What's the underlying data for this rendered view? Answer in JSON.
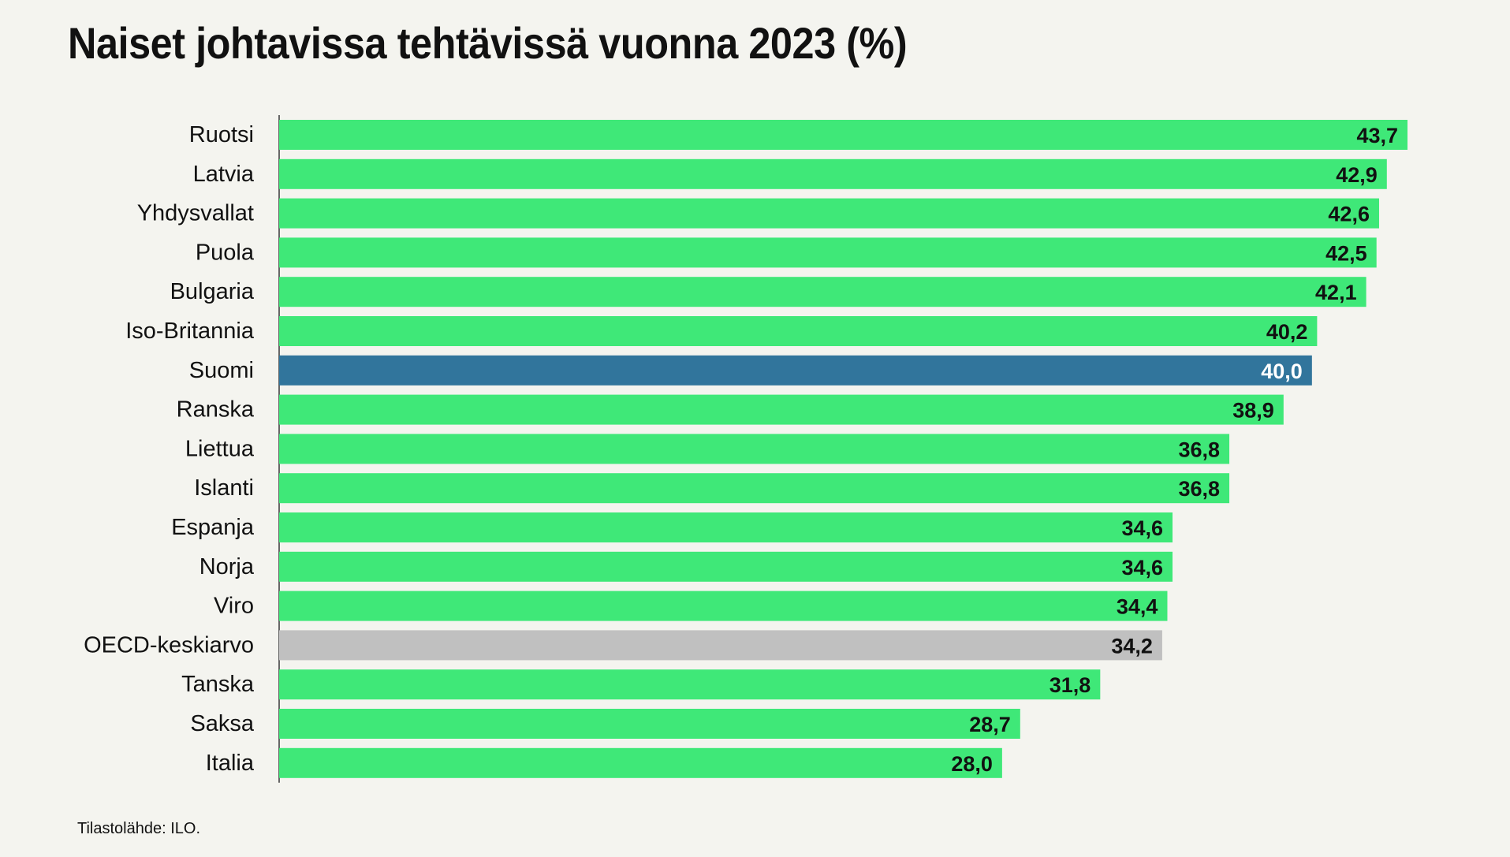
{
  "title": "Naiset johtavissa tehtävissä vuonna 2023 (%)",
  "source": "Tilastolähde: ILO.",
  "colors": {
    "default_bar": "#3fe878",
    "highlight_bar": "#31759c",
    "average_bar": "#c0c0c0",
    "label_dark": "#111111",
    "label_light": "#ffffff",
    "axis": "#666666",
    "background": "#f4f4ef"
  },
  "chart_data": {
    "type": "bar",
    "orientation": "horizontal",
    "title": "Naiset johtavissa tehtävissä vuonna 2023 (%)",
    "xlabel": "",
    "ylabel": "",
    "xlim": [
      0,
      43.7
    ],
    "grid": false,
    "legend": "none",
    "categories": [
      "Ruotsi",
      "Latvia",
      "Yhdysvallat",
      "Puola",
      "Bulgaria",
      "Iso-Britannia",
      "Suomi",
      "Ranska",
      "Liettua",
      "Islanti",
      "Espanja",
      "Norja",
      "Viro",
      "OECD-keskiarvo",
      "Tanska",
      "Saksa",
      "Italia"
    ],
    "values": [
      43.7,
      42.9,
      42.6,
      42.5,
      42.1,
      40.2,
      40.0,
      38.9,
      36.8,
      36.8,
      34.6,
      34.6,
      34.4,
      34.2,
      31.8,
      28.7,
      28.0
    ],
    "value_labels": [
      "43,7",
      "42,9",
      "42,6",
      "42,5",
      "42,1",
      "40,2",
      "40,0",
      "38,9",
      "36,8",
      "36,8",
      "34,6",
      "34,6",
      "34,4",
      "34,2",
      "31,8",
      "28,7",
      "28,0"
    ],
    "highlight": "Suomi",
    "average": "OECD-keskiarvo"
  }
}
